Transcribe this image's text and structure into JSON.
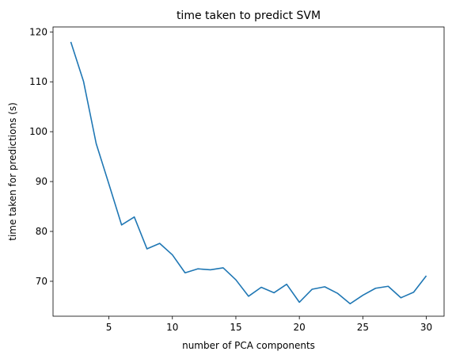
{
  "chart_data": {
    "type": "line",
    "title": "time taken to predict SVM",
    "xlabel": "number of PCA components",
    "ylabel": "time taken for predictions (s)",
    "xlim": [
      0.6,
      31.4
    ],
    "ylim": [
      63.0,
      121.0
    ],
    "xticks": [
      5,
      10,
      15,
      20,
      25,
      30
    ],
    "yticks": [
      70,
      80,
      90,
      100,
      110,
      120
    ],
    "grid": false,
    "series": [
      {
        "color": "#1f77b4",
        "x": [
          2,
          3,
          4,
          5,
          6,
          7,
          8,
          9,
          10,
          11,
          12,
          13,
          14,
          15,
          16,
          17,
          18,
          19,
          20,
          21,
          22,
          23,
          24,
          25,
          26,
          27,
          28,
          29,
          30
        ],
        "y": [
          118.0,
          110.1,
          97.6,
          89.5,
          81.3,
          82.9,
          76.5,
          77.6,
          75.3,
          71.7,
          72.5,
          72.3,
          72.7,
          70.3,
          67.0,
          68.8,
          67.7,
          69.4,
          65.8,
          68.4,
          68.9,
          67.6,
          65.5,
          67.2,
          68.6,
          69.0,
          66.7,
          67.8,
          71.1
        ]
      }
    ]
  }
}
